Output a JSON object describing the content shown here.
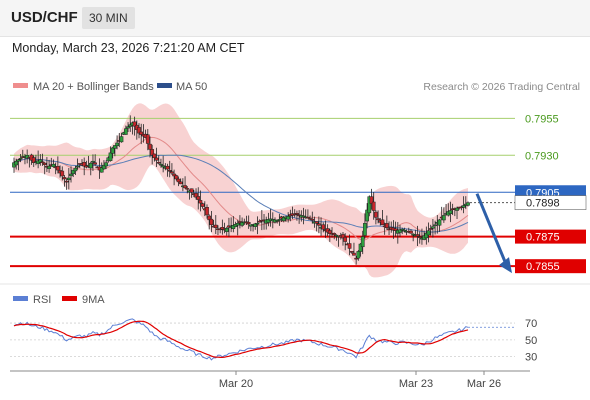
{
  "header": {
    "symbol": "USD/CHF",
    "timeframe": "30 MIN",
    "datetime": "Monday, March 23, 2026 7:21:20 AM CET"
  },
  "legend": {
    "ma20_label": "MA 20 + Bollinger Bands",
    "ma50_label": "MA 50",
    "rsi_label": "RSI",
    "rsi_ma_label": "9MA",
    "credit": "Research © 2026 Trading Central"
  },
  "colors": {
    "up_candle": "#2e9e3e",
    "down_candle": "#c7262b",
    "bollinger": "#f6c3c3",
    "ma20": "#e38a8a",
    "ma50": "#5a7fb7",
    "resistance": "#a6cf6d",
    "support": "#e00000",
    "pivot": "#2d67c2",
    "arrow": "#2d5fa8",
    "rsi": "#5b7fd4",
    "rsi_ma": "#e00000"
  },
  "chart_data": {
    "type": "candlestick",
    "y_range": [
      0.7847,
      0.7962
    ],
    "levels": [
      {
        "label": "0.7955",
        "value": 0.7955,
        "kind": "resistance"
      },
      {
        "label": "0.7930",
        "value": 0.793,
        "kind": "resistance"
      },
      {
        "label": "0.7905",
        "value": 0.7905,
        "kind": "pivot"
      },
      {
        "label": "0.7898",
        "value": 0.7898,
        "kind": "current"
      },
      {
        "label": "0.7875",
        "value": 0.7875,
        "kind": "support"
      },
      {
        "label": "0.7855",
        "value": 0.7855,
        "kind": "support"
      }
    ],
    "forecast": {
      "from": 0.7904,
      "to": 0.7853,
      "direction": "down"
    },
    "x_ticks": [
      "Mar 20",
      "Mar 23",
      "Mar 26"
    ],
    "price_path": [
      0.7925,
      0.7928,
      0.793,
      0.7925,
      0.7927,
      0.7922,
      0.7924,
      0.7918,
      0.7912,
      0.792,
      0.7924,
      0.7922,
      0.7926,
      0.792,
      0.7925,
      0.7935,
      0.794,
      0.7948,
      0.7952,
      0.7945,
      0.7942,
      0.793,
      0.7925,
      0.7922,
      0.7918,
      0.7912,
      0.7908,
      0.7905,
      0.79,
      0.7893,
      0.7883,
      0.788,
      0.788,
      0.7882,
      0.7884,
      0.7885,
      0.7883,
      0.7884,
      0.7886,
      0.7887,
      0.7886,
      0.7888,
      0.7889,
      0.789,
      0.7889,
      0.7887,
      0.7884,
      0.788,
      0.7877,
      0.7876,
      0.7874,
      0.7867,
      0.786,
      0.7875,
      0.7902,
      0.7888,
      0.7883,
      0.788,
      0.7879,
      0.788,
      0.7878,
      0.7876,
      0.7874,
      0.7879,
      0.7883,
      0.7888,
      0.7892,
      0.7894,
      0.7895,
      0.7898
    ],
    "rsi": {
      "levels": [
        70,
        50,
        30
      ],
      "range": [
        20,
        82
      ],
      "values": [
        68,
        70,
        69,
        66,
        65,
        62,
        60,
        55,
        50,
        52,
        55,
        54,
        58,
        56,
        60,
        66,
        70,
        72,
        74,
        70,
        66,
        58,
        52,
        50,
        46,
        42,
        38,
        36,
        32,
        30,
        28,
        30,
        32,
        34,
        36,
        38,
        40,
        41,
        42,
        44,
        45,
        46,
        48,
        50,
        49,
        48,
        46,
        44,
        42,
        40,
        38,
        34,
        30,
        42,
        55,
        50,
        48,
        47,
        46,
        47,
        46,
        45,
        44,
        48,
        52,
        55,
        58,
        60,
        62,
        65
      ]
    }
  }
}
